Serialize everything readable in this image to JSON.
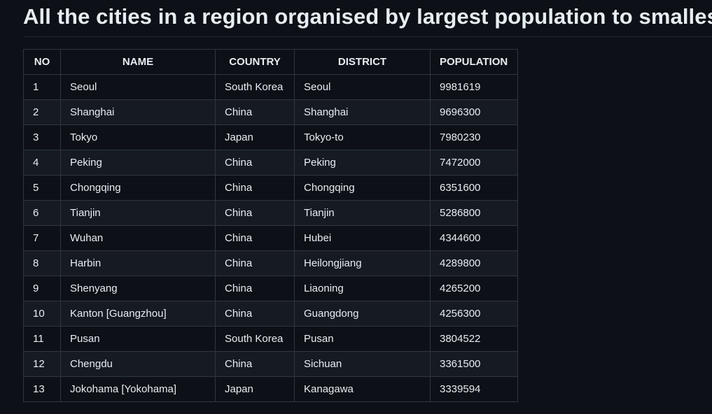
{
  "page": {
    "title": "All the cities in a region organised by largest population to smallest"
  },
  "table": {
    "headers": [
      "NO",
      "NAME",
      "COUNTRY",
      "DISTRICT",
      "POPULATION"
    ],
    "rows": [
      [
        "1",
        "Seoul",
        "South Korea",
        "Seoul",
        "9981619"
      ],
      [
        "2",
        "Shanghai",
        "China",
        "Shanghai",
        "9696300"
      ],
      [
        "3",
        "Tokyo",
        "Japan",
        "Tokyo-to",
        "7980230"
      ],
      [
        "4",
        "Peking",
        "China",
        "Peking",
        "7472000"
      ],
      [
        "5",
        "Chongqing",
        "China",
        "Chongqing",
        "6351600"
      ],
      [
        "6",
        "Tianjin",
        "China",
        "Tianjin",
        "5286800"
      ],
      [
        "7",
        "Wuhan",
        "China",
        "Hubei",
        "4344600"
      ],
      [
        "8",
        "Harbin",
        "China",
        "Heilongjiang",
        "4289800"
      ],
      [
        "9",
        "Shenyang",
        "China",
        "Liaoning",
        "4265200"
      ],
      [
        "10",
        "Kanton [Guangzhou]",
        "China",
        "Guangdong",
        "4256300"
      ],
      [
        "11",
        "Pusan",
        "South Korea",
        "Pusan",
        "3804522"
      ],
      [
        "12",
        "Chengdu",
        "China",
        "Sichuan",
        "3361500"
      ],
      [
        "13",
        "Jokohama [Yokohama]",
        "Japan",
        "Kanagawa",
        "3339594"
      ]
    ]
  },
  "colors": {
    "background": "#0d1117",
    "row_alt": "#161b22",
    "border": "#30363d",
    "text": "#e6edf3"
  }
}
